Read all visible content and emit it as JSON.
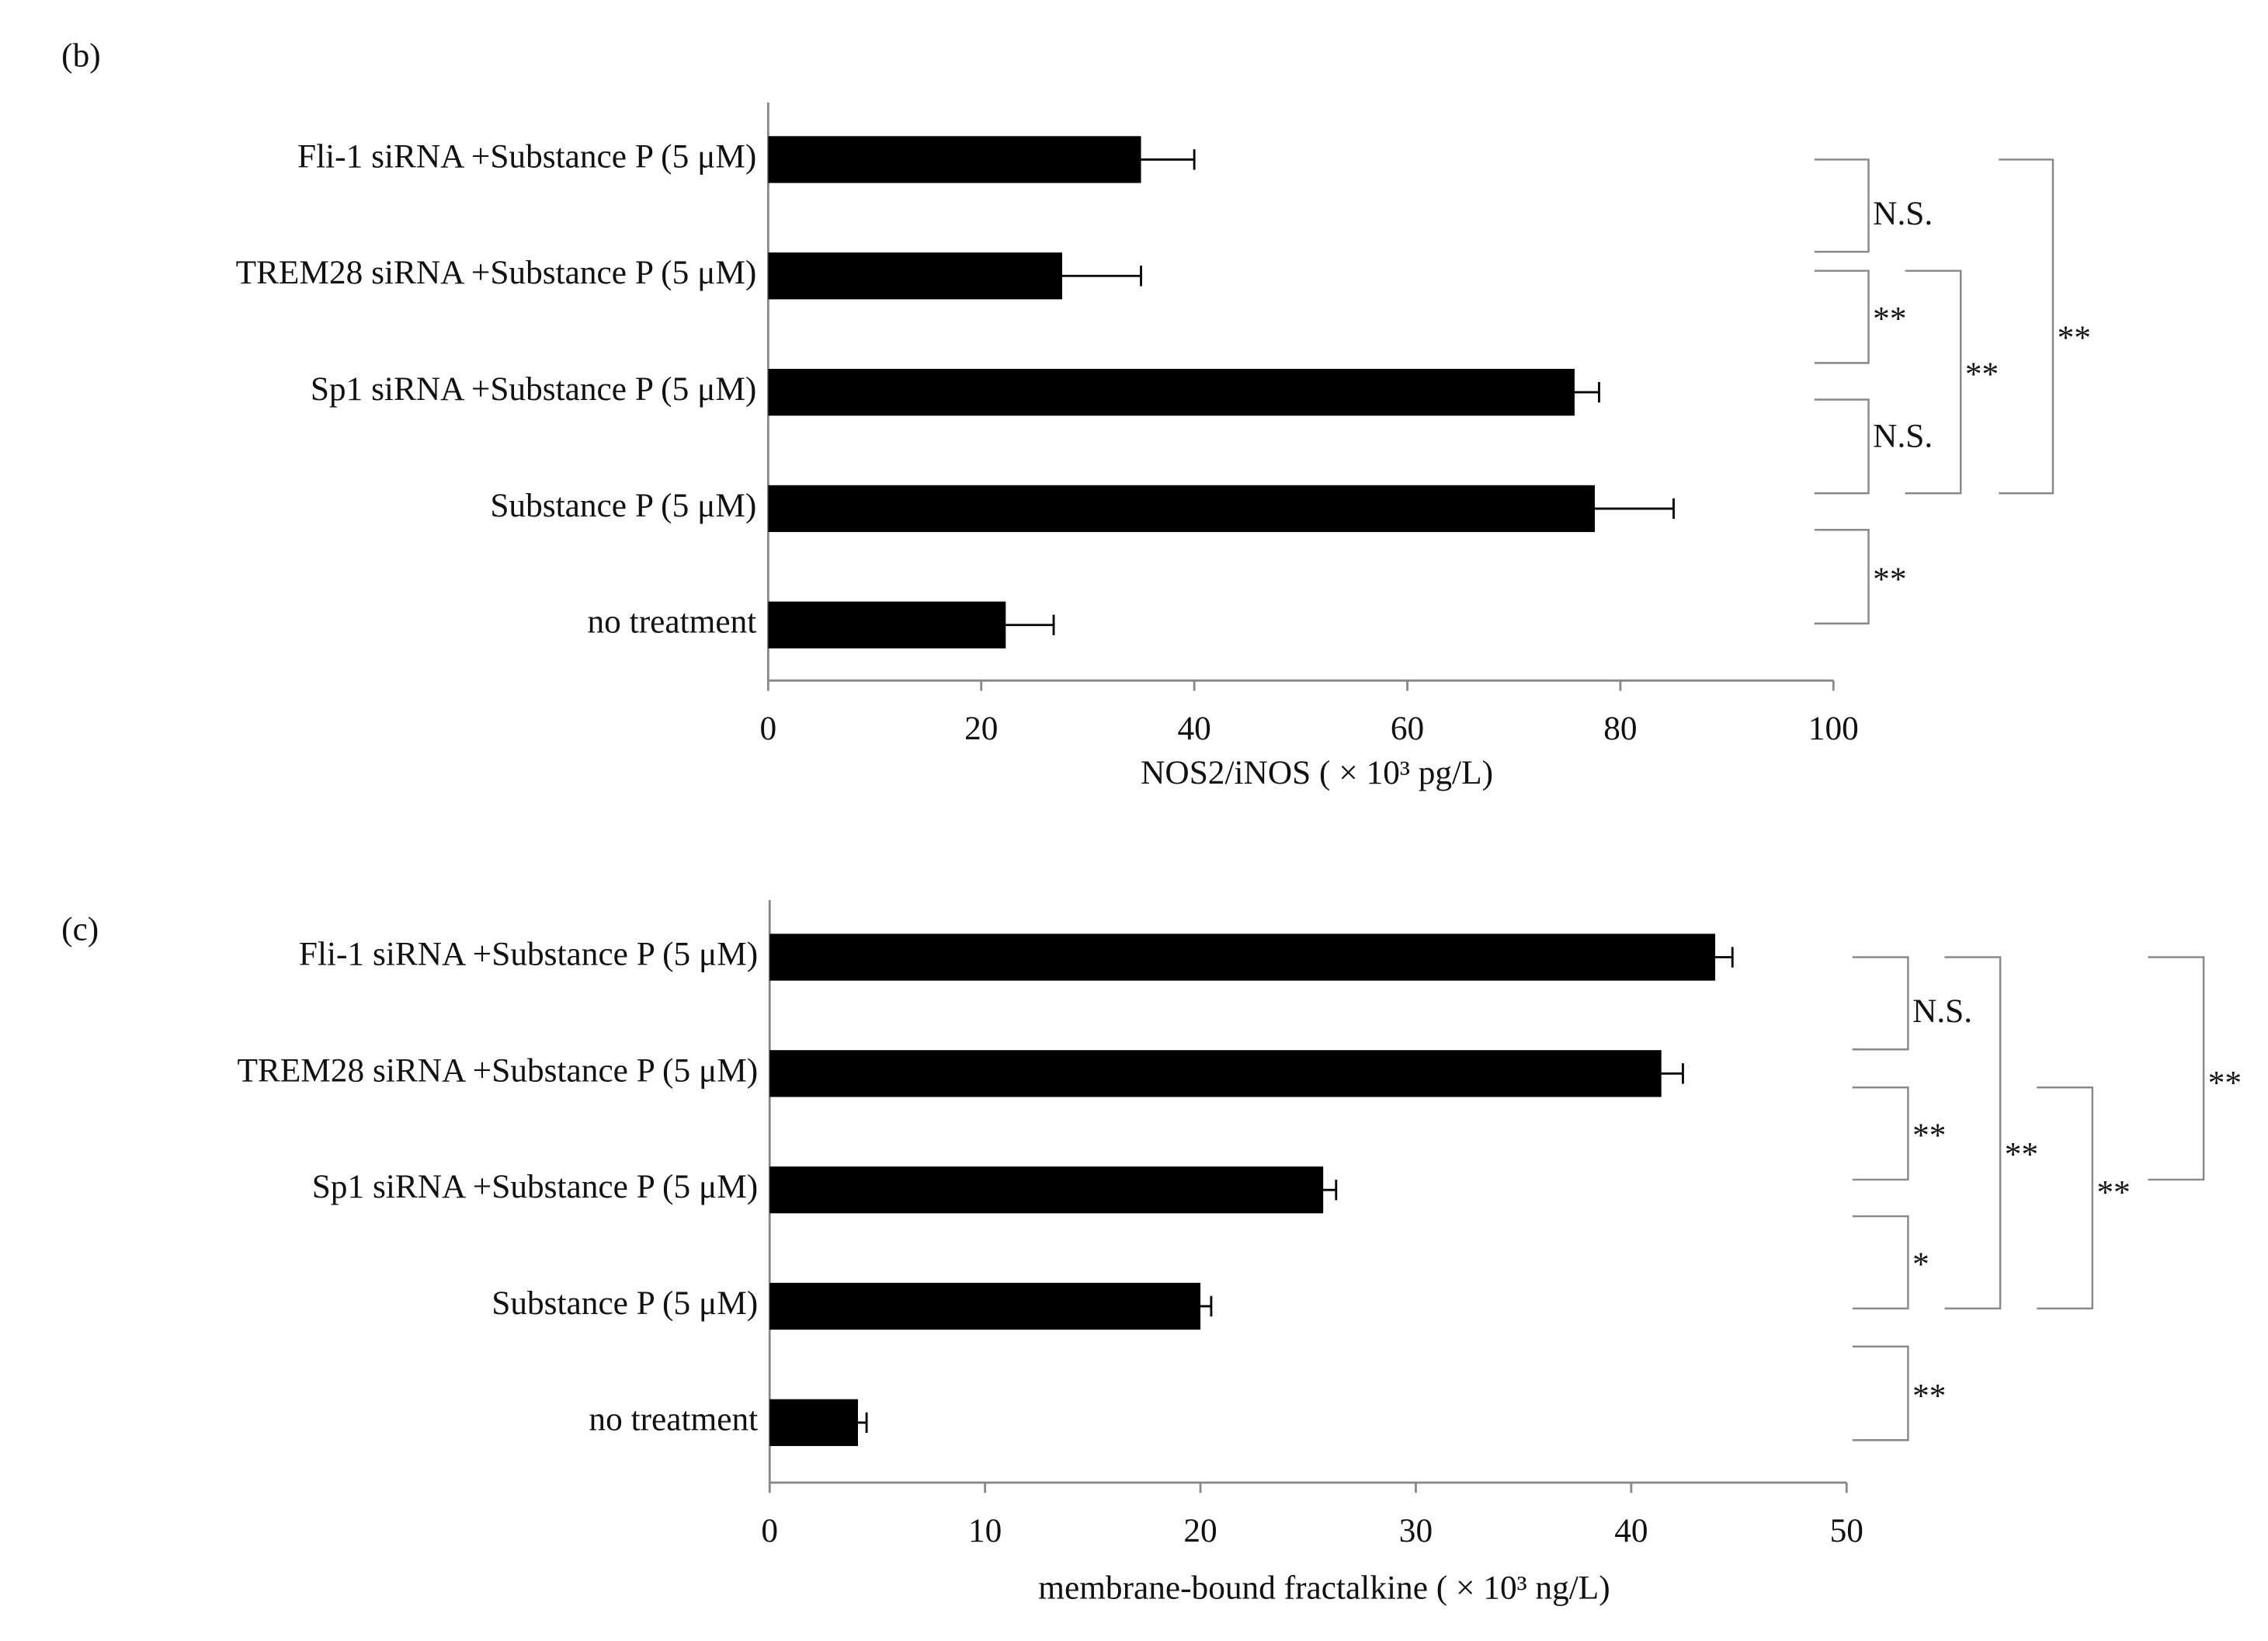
{
  "chart_data": [
    {
      "type": "bar",
      "orientation": "horizontal",
      "panel_label": "(b)",
      "categories": [
        "Fli-1 siRNA +Substance P (5 μM)",
        "TREM28 siRNA +Substance P (5 μM)",
        "Sp1 siRNA +Substance P (5 μM)",
        "Substance P (5 μM)",
        "no treatment"
      ],
      "values": [
        35,
        27.6,
        75.7,
        77.6,
        22.3
      ],
      "errors": [
        5,
        7.4,
        2.3,
        7.4,
        4.5
      ],
      "color": "#000000",
      "xlabel": "NOS2/iNOS ( × 10³ pg/L)",
      "xlim": [
        0,
        100
      ],
      "xticks": [
        0,
        20,
        40,
        60,
        80,
        100
      ],
      "annotations": [
        "N.S.",
        "**",
        "N.S.",
        "**",
        "**",
        "**"
      ]
    },
    {
      "type": "bar",
      "orientation": "horizontal",
      "panel_label": "(c)",
      "categories": [
        "Fli-1 siRNA +Substance P (5 μM)",
        "TREM28 siRNA +Substance P (5 μM)",
        "Sp1 siRNA +Substance P (5 μM)",
        "Substance P (5 μM)",
        "no treatment"
      ],
      "values": [
        43.9,
        41.4,
        25.7,
        20,
        4.1
      ],
      "errors": [
        0.8,
        1,
        0.6,
        0.5,
        0.4
      ],
      "color": "#000000",
      "xlabel": "membrane-bound fractalkine ( ×  10³ ng/L)",
      "xlim": [
        0,
        50
      ],
      "xticks": [
        0,
        10,
        20,
        30,
        40,
        50
      ],
      "annotations": [
        "N.S.",
        "**",
        "*",
        "**",
        "**",
        "**",
        "**"
      ]
    }
  ]
}
